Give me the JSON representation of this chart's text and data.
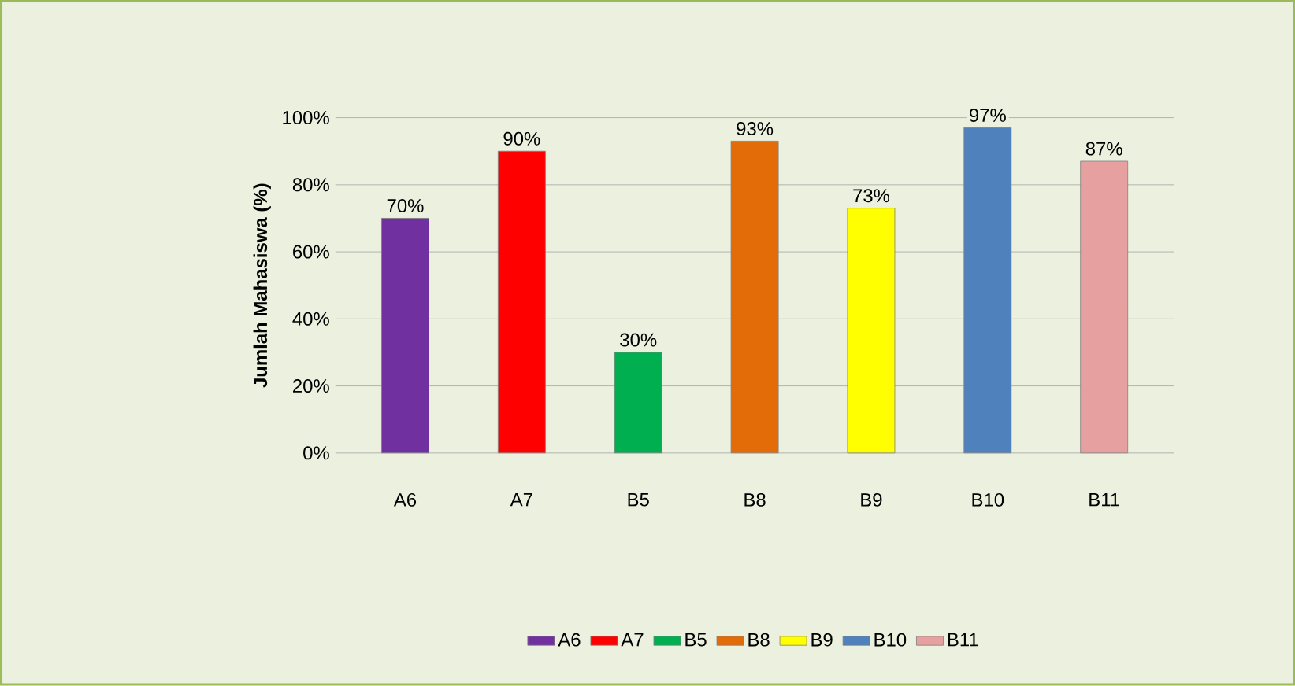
{
  "chart_data": {
    "type": "bar",
    "ylabel": "Jumlah Mahasiswa (%)",
    "categories": [
      "A6",
      "A7",
      "B5",
      "B8",
      "B9",
      "B10",
      "B11"
    ],
    "series": [
      {
        "name": "A6",
        "color": "#7030a0",
        "values": [
          70,
          null,
          null,
          null,
          null,
          null,
          null
        ],
        "value_labels": [
          "70%",
          null,
          null,
          null,
          null,
          null,
          null
        ]
      },
      {
        "name": "A7",
        "color": "#ff0000",
        "values": [
          null,
          90,
          null,
          null,
          null,
          null,
          null
        ],
        "value_labels": [
          null,
          "90%",
          null,
          null,
          null,
          null,
          null
        ]
      },
      {
        "name": "B5",
        "color": "#00b050",
        "values": [
          null,
          null,
          30,
          null,
          null,
          null,
          null
        ],
        "value_labels": [
          null,
          null,
          "30%",
          null,
          null,
          null,
          null
        ]
      },
      {
        "name": "B8",
        "color": "#e36c09",
        "values": [
          null,
          null,
          null,
          93,
          null,
          null,
          null
        ],
        "value_labels": [
          null,
          null,
          null,
          "93%",
          null,
          null,
          null
        ]
      },
      {
        "name": "B9",
        "color": "#ffff00",
        "values": [
          null,
          null,
          null,
          null,
          73,
          null,
          null
        ],
        "value_labels": [
          null,
          null,
          null,
          null,
          "73%",
          null,
          null
        ]
      },
      {
        "name": "B10",
        "color": "#4f81bd",
        "values": [
          null,
          null,
          null,
          null,
          null,
          97,
          null
        ],
        "value_labels": [
          null,
          null,
          null,
          null,
          null,
          "97%",
          null
        ]
      },
      {
        "name": "B11",
        "color": "#e6a0a0",
        "values": [
          null,
          null,
          null,
          null,
          null,
          null,
          87
        ],
        "value_labels": [
          null,
          null,
          null,
          null,
          null,
          null,
          "87%"
        ]
      }
    ],
    "ylim": [
      0,
      100
    ],
    "yticks": [
      {
        "value": 0,
        "label": "0%"
      },
      {
        "value": 20,
        "label": "20%"
      },
      {
        "value": 40,
        "label": "40%"
      },
      {
        "value": 60,
        "label": "60%"
      },
      {
        "value": 80,
        "label": "80%"
      },
      {
        "value": 100,
        "label": "100%"
      }
    ],
    "grid": "y",
    "legend": "bottom"
  }
}
